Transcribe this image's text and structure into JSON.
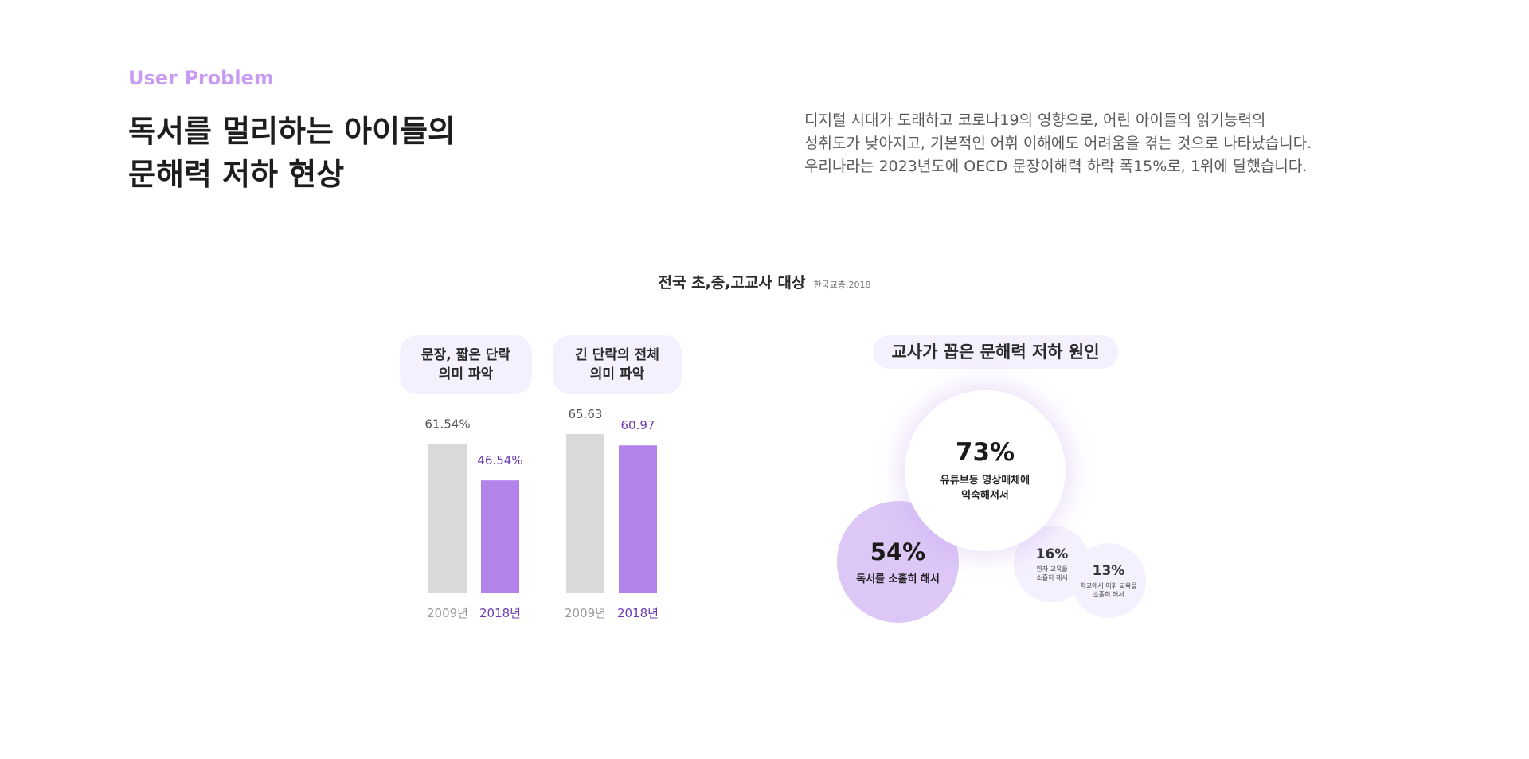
{
  "header": {
    "eyebrow": "User Problem",
    "headline": "독서를 멀리하는 아이들의\n문해력 저하 현상",
    "description": "디지털 시대가 도래하고 코로나19의 영향으로, 어린 아이들의 읽기능력의\n성취도가 낮아지고, 기본적인 어휘 이해에도 어려움을 겪는 것으로 나타났습니다.\n우리나라는 2023년도에 OECD 문장이해력 하락 폭15%로, 1위에 달했습니다."
  },
  "survey": {
    "title": "전국 초,중,고교사 대상",
    "source": "한국교총,2018"
  },
  "chart_data": [
    {
      "type": "bar",
      "categories": [
        "2009년",
        "2018년"
      ],
      "groups": [
        {
          "title": "문장, 짧은 단락\n의미 파악",
          "values": [
            61.54,
            46.54
          ],
          "labels": [
            "61.54%",
            "46.54%"
          ]
        },
        {
          "title": "긴 단락의 전체\n의미 파악",
          "values": [
            65.63,
            60.97
          ],
          "labels": [
            "65.63",
            "60.97"
          ]
        }
      ],
      "colors": {
        "2009": "#d9d9d9",
        "2018": "#b284ea",
        "label2018": "#6a3bb0",
        "label2009": "#555555",
        "tick2009": "#9a9a9a",
        "tick2018": "#6a3bb0"
      }
    },
    {
      "type": "bubble",
      "title": "교사가 꼽은 문해력 저하 원인",
      "items": [
        {
          "value": 73,
          "pct": "73%",
          "label": "유튜브등 영상매체에\n익숙해져서"
        },
        {
          "value": 54,
          "pct": "54%",
          "label": "독서를 소홀히 해서"
        },
        {
          "value": 16,
          "pct": "16%",
          "label": "한자 교육을\n소홀히 해서"
        },
        {
          "value": 13,
          "pct": "13%",
          "label": "학교에서 어휘 교육을\n소홀히 해서"
        }
      ]
    }
  ]
}
